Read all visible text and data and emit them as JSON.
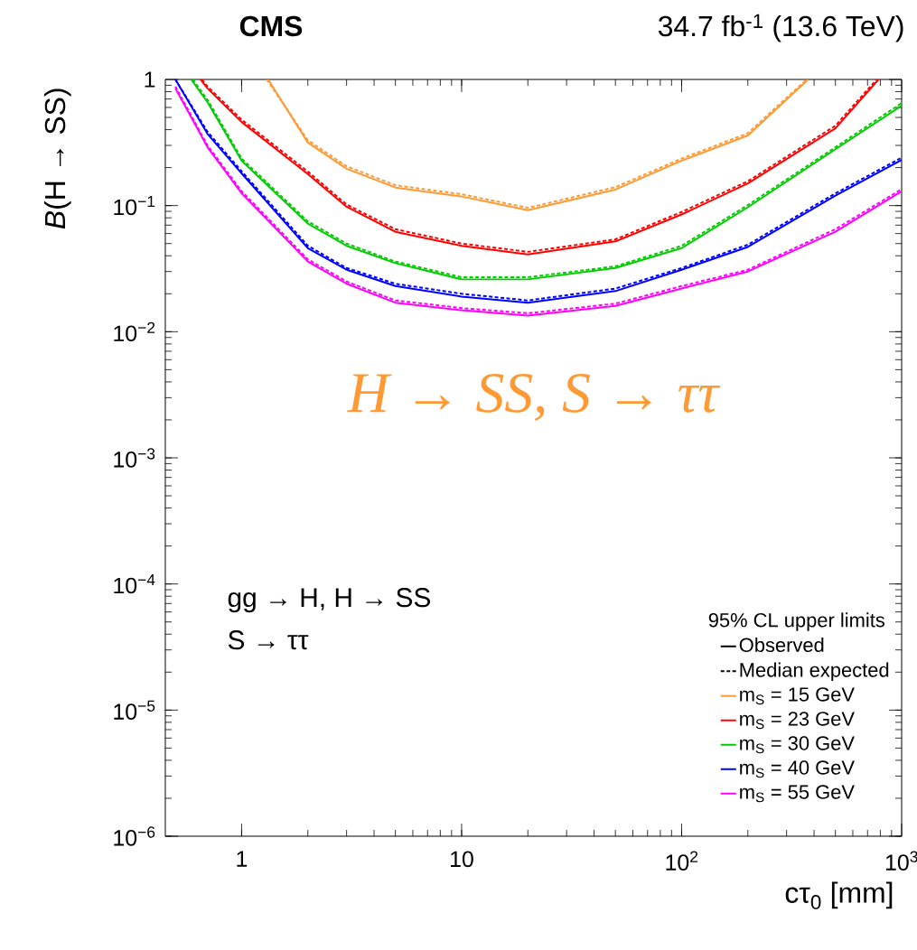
{
  "chart_data": {
    "type": "line",
    "title": "CMS",
    "xlabel": "cτ$_{0}$ [mm]",
    "ylabel": "*B*(H → SS)",
    "legend_title": "95% CL upper limits",
    "log": "xy",
    "xlim": [
      0.45,
      1000
    ],
    "ylim": [
      1e-06,
      1
    ],
    "xticks": [
      1,
      10,
      {
        "value": 100,
        "label": "10$^{2}$"
      },
      {
        "value": 1000,
        "label": "10$^{3}$"
      }
    ],
    "yticks": [
      {
        "value": 1e-06,
        "label": "10$^{−6}$"
      },
      {
        "value": 1e-05,
        "label": "10$^{−5}$"
      },
      {
        "value": 0.0001,
        "label": "10$^{−4}$"
      },
      {
        "value": 0.001,
        "label": "10$^{−3}$"
      },
      {
        "value": 0.01,
        "label": "10$^{−2}$"
      },
      {
        "value": 0.1,
        "label": "10$^{−1}$"
      },
      1
    ],
    "legend": "bottom right",
    "annotations": [
      "34.7 fb$^{-1}$ (13.6 TeV)",
      "H → SS, S → ττ",
      "gg → H, H → SS",
      "S → ττ"
    ],
    "series": [
      {
        "name": "Observed",
        "color": "#000000",
        "line_style": "solid"
      },
      {
        "name": "Median expected",
        "color": "#000000",
        "line_style": "dashed"
      },
      {
        "name": "m$_{S}$ = 15 GeV",
        "color": "#ff9933",
        "line_style": "solid",
        "x": [
          1.32,
          2,
          3,
          5,
          10,
          20,
          50,
          100,
          200,
          376
        ],
        "values": [
          1,
          0.316,
          0.196,
          0.139,
          0.118,
          0.092,
          0.134,
          0.227,
          0.36,
          1
        ]
      },
      {
        "color": "#ff9933",
        "line_style": "dashed",
        "x": [
          1.3,
          2,
          3,
          5,
          10,
          20,
          50,
          100,
          200,
          370
        ],
        "values": [
          1,
          0.33,
          0.205,
          0.145,
          0.123,
          0.096,
          0.14,
          0.236,
          0.375,
          1
        ]
      },
      {
        "name": "m$_{S}$ = 23 GeV",
        "color": "#ff0000",
        "line_style": "solid",
        "x": [
          0.65,
          0.7,
          1,
          2,
          3,
          5,
          10,
          20,
          50,
          100,
          200,
          500,
          785
        ],
        "values": [
          1,
          0.85,
          0.46,
          0.178,
          0.098,
          0.062,
          0.048,
          0.041,
          0.052,
          0.085,
          0.15,
          0.41,
          1
        ]
      },
      {
        "color": "#ff0000",
        "line_style": "dashed",
        "x": [
          0.66,
          0.7,
          1,
          2,
          3,
          5,
          10,
          20,
          50,
          100,
          200,
          500,
          770
        ],
        "values": [
          1,
          0.88,
          0.48,
          0.186,
          0.102,
          0.065,
          0.05,
          0.043,
          0.054,
          0.089,
          0.156,
          0.43,
          1
        ]
      },
      {
        "name": "m$_{S}$ = 30 GeV",
        "color": "#00cc00",
        "line_style": "solid",
        "x": [
          0.59,
          0.7,
          1,
          2,
          3,
          5,
          10,
          20,
          50,
          100,
          200,
          500,
          1000
        ],
        "values": [
          1,
          0.66,
          0.227,
          0.072,
          0.048,
          0.035,
          0.026,
          0.026,
          0.032,
          0.046,
          0.097,
          0.28,
          0.62
        ]
      },
      {
        "color": "#00cc00",
        "line_style": "dashed",
        "x": [
          0.6,
          0.7,
          1,
          2,
          3,
          5,
          10,
          20,
          50,
          100,
          200,
          500,
          1000
        ],
        "values": [
          1,
          0.69,
          0.236,
          0.075,
          0.05,
          0.036,
          0.027,
          0.027,
          0.033,
          0.048,
          0.101,
          0.29,
          0.65
        ]
      },
      {
        "name": "m$_{S}$ = 40 GeV",
        "color": "#0000ff",
        "line_style": "solid",
        "x": [
          0.5,
          0.7,
          1,
          2,
          3,
          5,
          10,
          20,
          50,
          100,
          200,
          500,
          1000
        ],
        "values": [
          1,
          0.37,
          0.18,
          0.046,
          0.031,
          0.023,
          0.019,
          0.017,
          0.021,
          0.031,
          0.047,
          0.12,
          0.23
        ]
      },
      {
        "color": "#0000ff",
        "line_style": "dashed",
        "x": [
          0.5,
          0.7,
          1,
          2,
          3,
          5,
          10,
          20,
          50,
          100,
          200,
          500,
          1000
        ],
        "values": [
          1,
          0.385,
          0.187,
          0.048,
          0.032,
          0.024,
          0.02,
          0.0177,
          0.022,
          0.032,
          0.049,
          0.125,
          0.24
        ]
      },
      {
        "name": "m$_{S}$ = 55 GeV",
        "color": "#ff00ff",
        "line_style": "solid",
        "x": [
          0.5,
          0.7,
          1,
          2,
          3,
          5,
          10,
          20,
          50,
          100,
          200,
          500,
          1000
        ],
        "values": [
          0.85,
          0.29,
          0.125,
          0.036,
          0.024,
          0.017,
          0.0148,
          0.0134,
          0.016,
          0.022,
          0.03,
          0.062,
          0.13
        ]
      },
      {
        "color": "#ff00ff",
        "line_style": "dashed",
        "x": [
          0.5,
          0.7,
          1,
          2,
          3,
          5,
          10,
          20,
          50,
          100,
          200,
          500,
          1000
        ],
        "values": [
          0.88,
          0.3,
          0.13,
          0.0375,
          0.025,
          0.0177,
          0.0154,
          0.014,
          0.0167,
          0.023,
          0.031,
          0.065,
          0.135
        ]
      }
    ]
  }
}
